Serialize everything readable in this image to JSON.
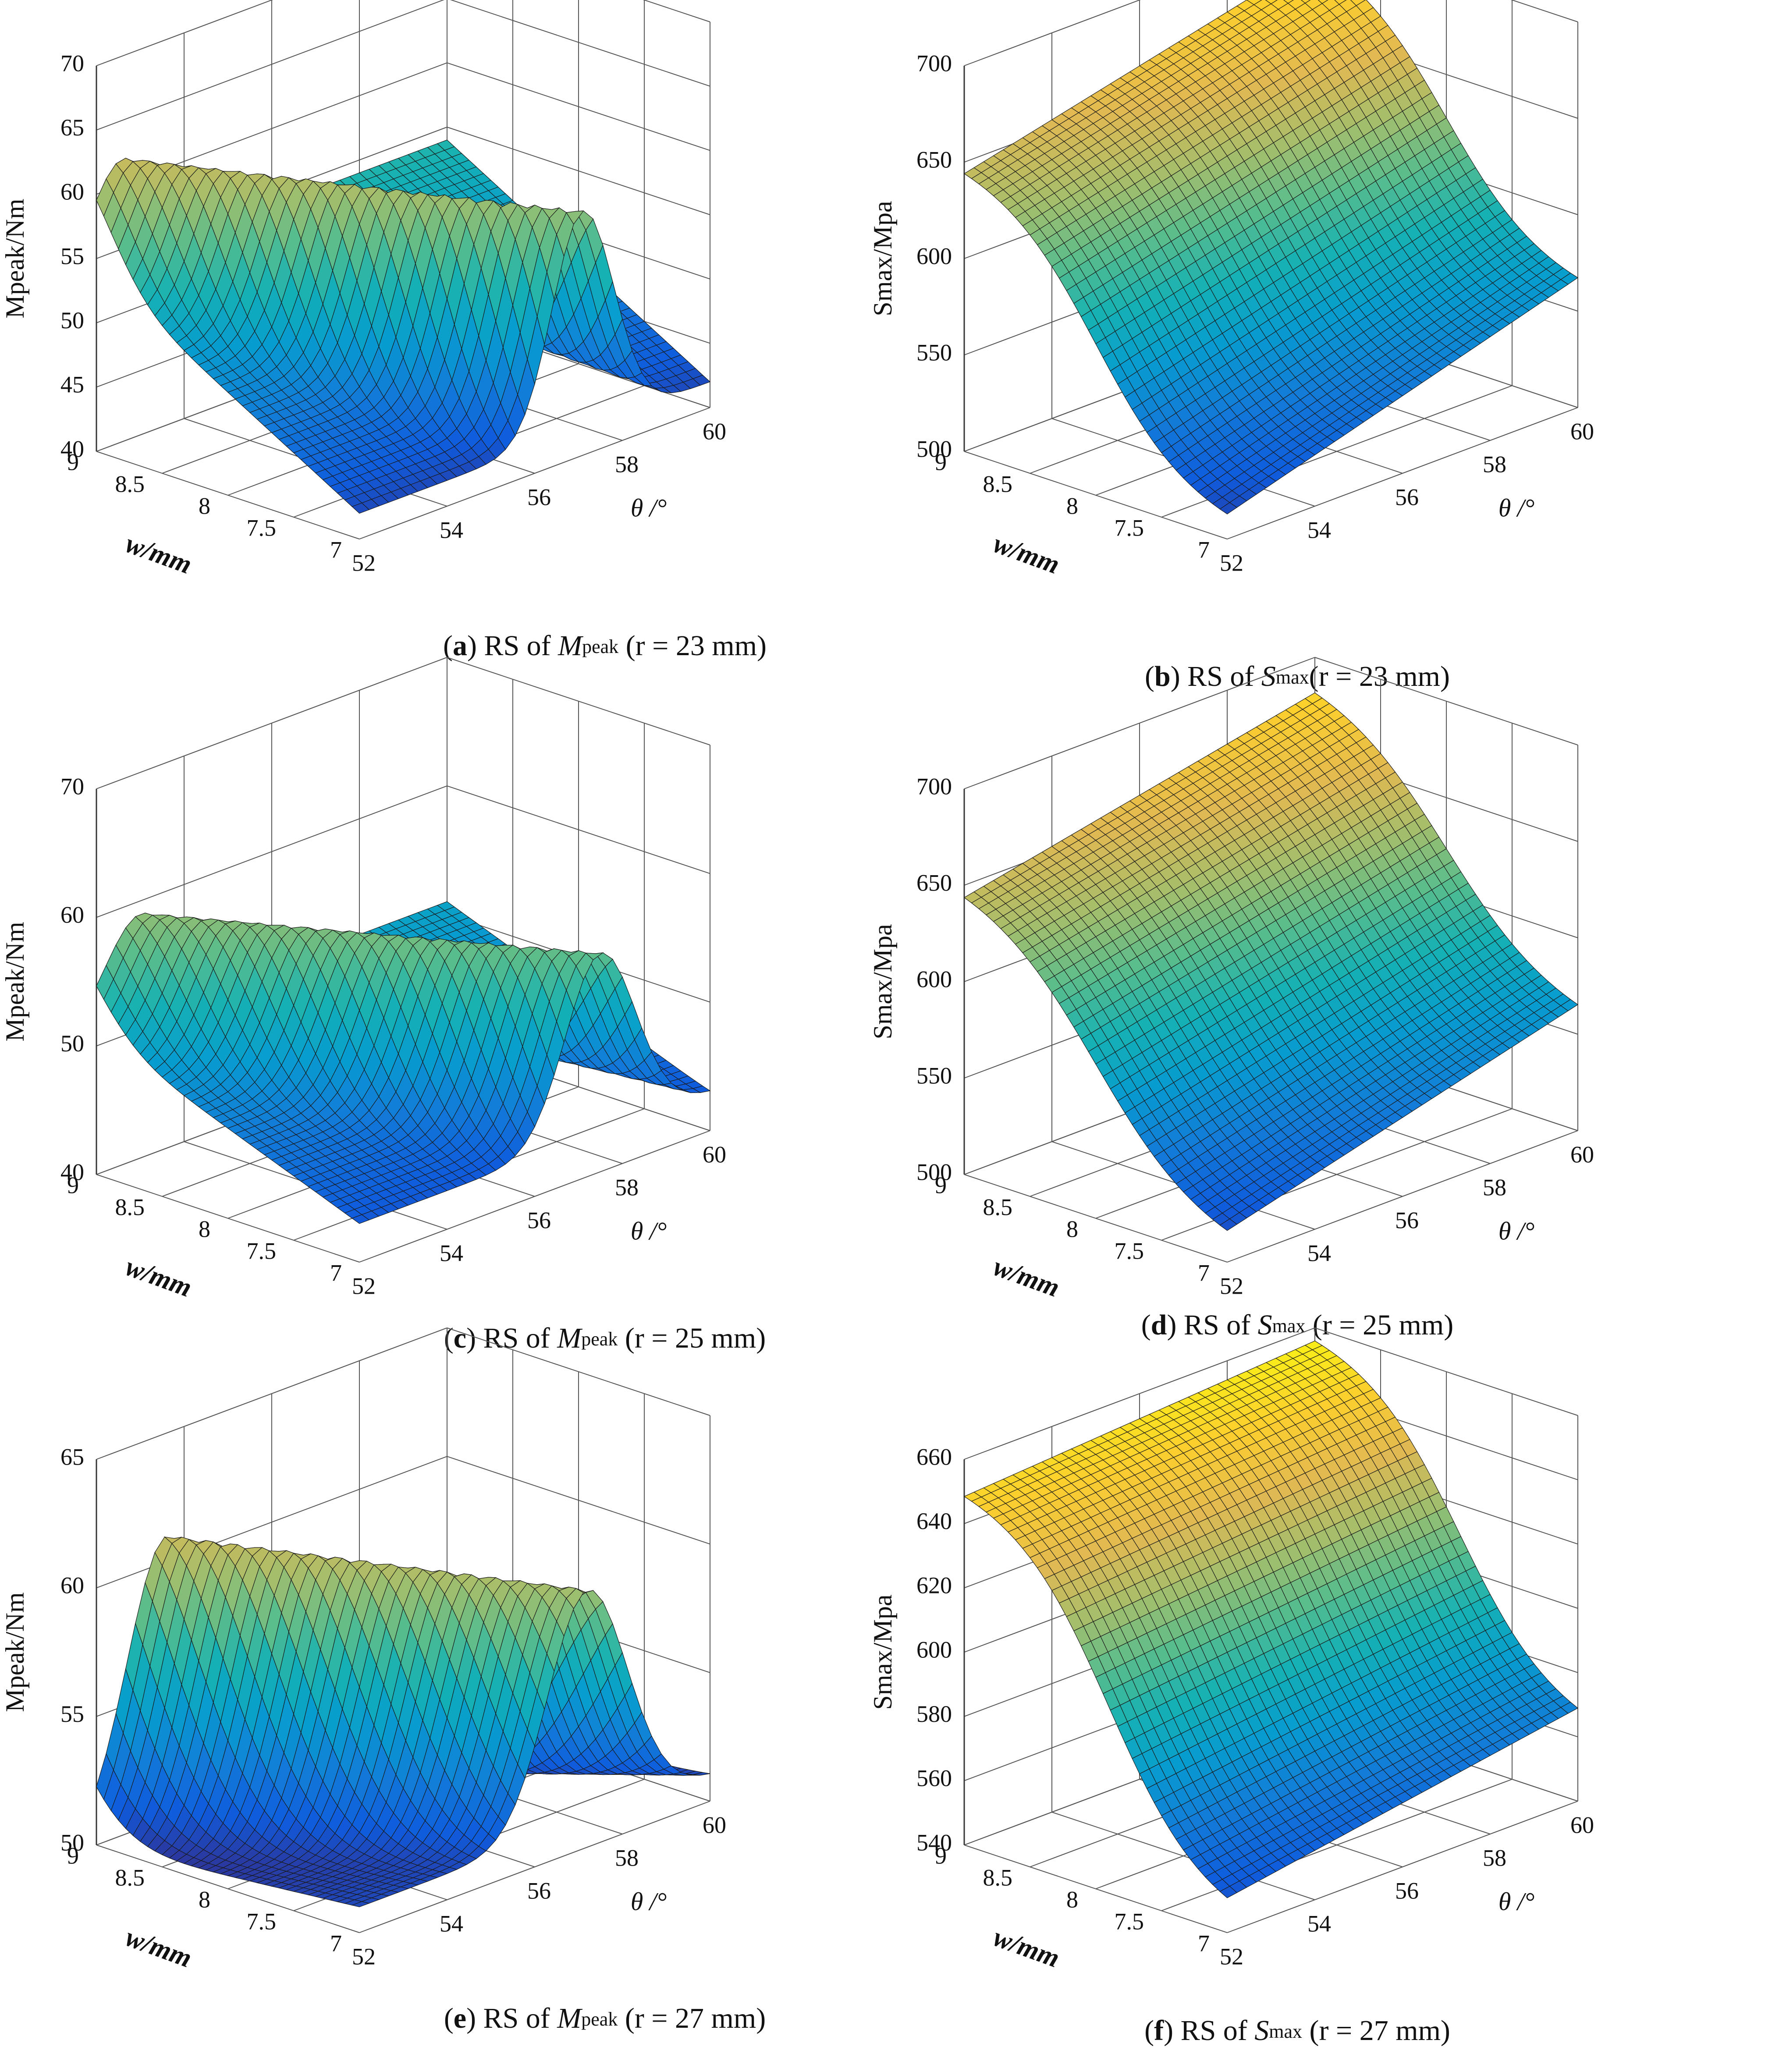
{
  "figure": {
    "type": "response-surface-figure",
    "panel_count": 6
  },
  "chart_data": [
    {
      "type": "surface",
      "panel": "a",
      "caption": {
        "label": "a",
        "prefix": "RS of ",
        "symbol": "M",
        "subscript": "peak",
        "suffix": " (r = 23 mm)"
      },
      "xlabel": "θ /°",
      "ylabel": "w/mm",
      "zlabel": "Mpeak/Nm",
      "x": {
        "range": [
          52,
          60
        ],
        "ticks": [
          "52",
          "54",
          "56",
          "58",
          "60"
        ]
      },
      "y": {
        "range": [
          7,
          9
        ],
        "ticks": [
          "7",
          "7.5",
          "8",
          "8.5",
          "9"
        ]
      },
      "z": {
        "range": [
          40,
          70
        ],
        "ticks": [
          "40",
          "45",
          "50",
          "55",
          "60",
          "65",
          "70"
        ]
      },
      "surface": {
        "model": "ridge",
        "theta_center": 52.6,
        "theta_width": 0.7,
        "w_slope": 5,
        "base_at_w9": 54,
        "base_at_w7": 42,
        "peak_at_w9": 62,
        "peak_at_w7": 59
      }
    },
    {
      "type": "surface",
      "panel": "b",
      "caption": {
        "label": "b",
        "prefix": "RS of ",
        "symbol": "S",
        "subscript": "max",
        "suffix": "(r = 23 mm)"
      },
      "xlabel": "θ /°",
      "ylabel": "w/mm",
      "zlabel": "Smax/Mpa",
      "x": {
        "range": [
          52,
          60
        ],
        "ticks": [
          "52",
          "54",
          "56",
          "58",
          "60"
        ]
      },
      "y": {
        "range": [
          7,
          9
        ],
        "ticks": [
          "7",
          "7.5",
          "8",
          "8.5",
          "9"
        ]
      },
      "z": {
        "range": [
          500,
          700
        ],
        "ticks": [
          "500",
          "550",
          "600",
          "650",
          "700"
        ]
      },
      "surface": {
        "model": "sigmoid-w",
        "w_center": 8.0,
        "w_width": 0.35,
        "low_at_theta52": 505,
        "high_at_theta52": 652,
        "low_at_theta60": 560,
        "high_at_theta60": 695
      }
    },
    {
      "type": "surface",
      "panel": "c",
      "caption": {
        "label": "c",
        "prefix": "RS of ",
        "symbol": "M",
        "subscript": "peak",
        "suffix": " (r = 25 mm)"
      },
      "xlabel": "θ /°",
      "ylabel": "w/mm",
      "zlabel": "Mpeak/Nm",
      "x": {
        "range": [
          52,
          60
        ],
        "ticks": [
          "52",
          "54",
          "56",
          "58",
          "60"
        ]
      },
      "y": {
        "range": [
          7,
          9
        ],
        "ticks": [
          "7",
          "7.5",
          "8",
          "8.5",
          "9"
        ]
      },
      "z": {
        "range": [
          40,
          70
        ],
        "ticks": [
          "40",
          "50",
          "60",
          "70"
        ]
      },
      "surface": {
        "model": "ridge",
        "theta_center": 53.0,
        "theta_width": 0.8,
        "w_slope": 5,
        "base_at_w9": 51,
        "base_at_w7": 43,
        "peak_at_w9": 59,
        "peak_at_w7": 57
      }
    },
    {
      "type": "surface",
      "panel": "d",
      "caption": {
        "label": "d",
        "prefix": "RS of ",
        "symbol": "S",
        "subscript": "max",
        "suffix": " (r = 25 mm)"
      },
      "xlabel": "θ /°",
      "ylabel": "w/mm",
      "zlabel": "Smax/Mpa",
      "x": {
        "range": [
          52,
          60
        ],
        "ticks": [
          "52",
          "54",
          "56",
          "58",
          "60"
        ]
      },
      "y": {
        "range": [
          7,
          9
        ],
        "ticks": [
          "7",
          "7.5",
          "8",
          "8.5",
          "9"
        ]
      },
      "z": {
        "range": [
          500,
          700
        ],
        "ticks": [
          "500",
          "550",
          "600",
          "650",
          "700"
        ]
      },
      "surface": {
        "model": "sigmoid-w",
        "w_center": 8.0,
        "w_width": 0.4,
        "low_at_theta52": 505,
        "high_at_theta52": 655,
        "low_at_theta60": 555,
        "high_at_theta60": 692
      }
    },
    {
      "type": "surface",
      "panel": "e",
      "caption": {
        "label": "e",
        "prefix": "RS of ",
        "symbol": "M",
        "subscript": "peak",
        "suffix": " (r = 27 mm)"
      },
      "xlabel": "θ /°",
      "ylabel": "w/mm",
      "zlabel": "Mpeak/Nm",
      "x": {
        "range": [
          52,
          60
        ],
        "ticks": [
          "52",
          "54",
          "56",
          "58",
          "60"
        ]
      },
      "y": {
        "range": [
          7,
          9
        ],
        "ticks": [
          "7",
          "7.5",
          "8",
          "8.5",
          "9"
        ]
      },
      "z": {
        "range": [
          50,
          65
        ],
        "ticks": [
          "50",
          "55",
          "60",
          "65"
        ]
      },
      "surface": {
        "model": "ridge",
        "theta_center": 53.6,
        "theta_width": 0.9,
        "w_slope": 4,
        "base_at_w9": 50,
        "base_at_w7": 51,
        "peak_at_w9": 61,
        "peak_at_w7": 60
      }
    },
    {
      "type": "surface",
      "panel": "f",
      "caption": {
        "label": "f",
        "prefix": "RS of ",
        "symbol": "S",
        "subscript": "max",
        "suffix": " (r = 27 mm)"
      },
      "xlabel": "θ /°",
      "ylabel": "w/mm",
      "zlabel": "Smax/Mpa",
      "x": {
        "range": [
          52,
          60
        ],
        "ticks": [
          "52",
          "54",
          "56",
          "58",
          "60"
        ]
      },
      "y": {
        "range": [
          7,
          9
        ],
        "ticks": [
          "7",
          "7.5",
          "8",
          "8.5",
          "9"
        ]
      },
      "z": {
        "range": [
          540,
          660
        ],
        "ticks": [
          "540",
          "560",
          "580",
          "600",
          "620",
          "640",
          "660"
        ]
      },
      "surface": {
        "model": "sigmoid-w",
        "w_center": 7.9,
        "w_width": 0.35,
        "low_at_theta52": 543,
        "high_at_theta52": 653,
        "low_at_theta60": 562,
        "high_at_theta60": 660
      }
    }
  ]
}
